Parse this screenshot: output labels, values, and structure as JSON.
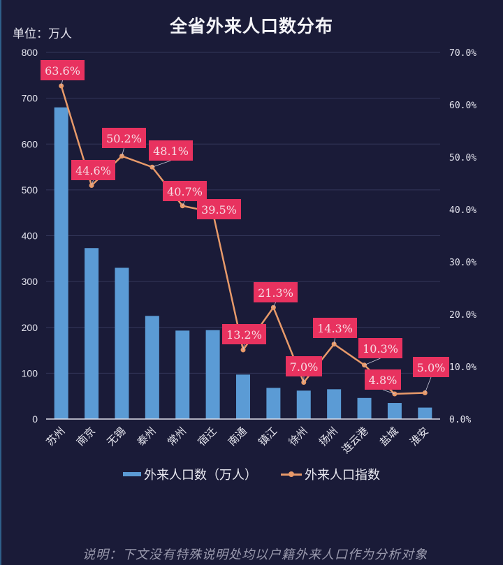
{
  "header": {
    "title": "全省外来人口数分布",
    "unit_label": "单位：万人"
  },
  "legend": {
    "bar_label": "外来人口数（万人）",
    "line_label": "外来人口指数"
  },
  "footer": {
    "note": "说明：下文没有特殊说明处均以户籍外来人口作为分析对象"
  },
  "colors": {
    "background": "#1a1b38",
    "bar": "#5b9bd5",
    "line": "#e89a6a",
    "label_bg": "#e8325f",
    "gridline": "#34375a"
  },
  "chart_data": {
    "type": "bar+line",
    "title": "全省外来人口数分布",
    "xlabel": "",
    "ylabel": "单位：万人",
    "y2label": "",
    "categories": [
      "苏州",
      "南京",
      "无锡",
      "泰州",
      "常州",
      "宿迁",
      "南通",
      "镇江",
      "徐州",
      "扬州",
      "连云港",
      "盐城",
      "淮安"
    ],
    "series": [
      {
        "name": "外来人口数（万人）",
        "type": "bar",
        "axis": "left",
        "values": [
          680,
          373,
          330,
          225,
          193,
          194,
          97,
          68,
          62,
          65,
          46,
          35,
          25
        ]
      },
      {
        "name": "外来人口指数",
        "type": "line",
        "axis": "right",
        "values": [
          63.6,
          44.6,
          50.2,
          48.1,
          40.7,
          39.5,
          13.2,
          21.3,
          7.0,
          14.3,
          10.3,
          4.8,
          5.0
        ],
        "data_labels": [
          "63.6%",
          "44.6%",
          "50.2%",
          "48.1%",
          "40.7%",
          "39.5%",
          "13.2%",
          "21.3%",
          "7.0%",
          "14.3%",
          "10.3%",
          "4.8%",
          "5.0%"
        ]
      }
    ],
    "ylim": [
      0,
      800
    ],
    "y_ticks": [
      "0",
      "100",
      "200",
      "300",
      "400",
      "500",
      "600",
      "700",
      "800"
    ],
    "y2lim": [
      0,
      70
    ],
    "y2_ticks": [
      "0.0%",
      "10.0%",
      "20.0%",
      "30.0%",
      "40.0%",
      "50.0%",
      "60.0%",
      "70.0%"
    ],
    "grid": true,
    "legend_position": "bottom"
  }
}
